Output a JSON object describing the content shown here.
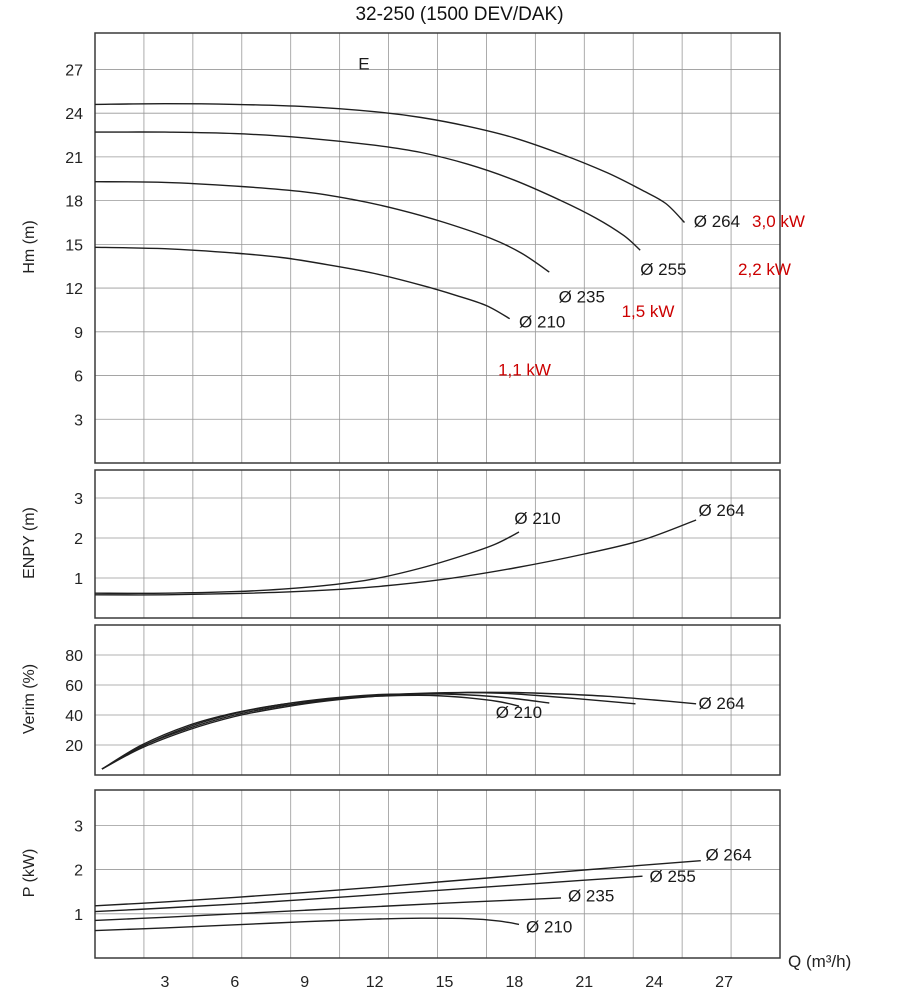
{
  "title": "32-250 (1500 DEV/DAK)",
  "x_axis": {
    "label": "Q (m³/h)",
    "min": 0,
    "max": 29.4,
    "grid_step": 2.1,
    "ticks": [
      3,
      6,
      9,
      12,
      15,
      18,
      21,
      24,
      27
    ]
  },
  "chart_data": [
    {
      "type": "line",
      "name": "head-curves",
      "ylabel": "Hm (m)",
      "y_min": 0,
      "y_max": 29.5,
      "y_ticks": [
        3,
        6,
        9,
        12,
        15,
        18,
        21,
        24,
        27
      ],
      "series": [
        {
          "name": "264",
          "points": [
            [
              0,
              24.6
            ],
            [
              3,
              24.65
            ],
            [
              6,
              24.6
            ],
            [
              9,
              24.45
            ],
            [
              12,
              24.1
            ],
            [
              14,
              23.7
            ],
            [
              16,
              23.1
            ],
            [
              18,
              22.3
            ],
            [
              20,
              21.2
            ],
            [
              22,
              19.9
            ],
            [
              23.5,
              18.7
            ],
            [
              24.5,
              17.8
            ],
            [
              25.3,
              16.5
            ]
          ]
        },
        {
          "name": "255",
          "points": [
            [
              0,
              22.7
            ],
            [
              3,
              22.7
            ],
            [
              6,
              22.6
            ],
            [
              9,
              22.3
            ],
            [
              12,
              21.8
            ],
            [
              14,
              21.3
            ],
            [
              16,
              20.5
            ],
            [
              18,
              19.4
            ],
            [
              20,
              18.0
            ],
            [
              21.5,
              16.8
            ],
            [
              22.7,
              15.6
            ],
            [
              23.4,
              14.6
            ]
          ]
        },
        {
          "name": "235",
          "points": [
            [
              0,
              19.3
            ],
            [
              3,
              19.25
            ],
            [
              6,
              19.0
            ],
            [
              9,
              18.6
            ],
            [
              11,
              18.1
            ],
            [
              13,
              17.4
            ],
            [
              15,
              16.5
            ],
            [
              17,
              15.4
            ],
            [
              18.3,
              14.4
            ],
            [
              19.5,
              13.1
            ]
          ]
        },
        {
          "name": "210",
          "points": [
            [
              0,
              14.8
            ],
            [
              3,
              14.7
            ],
            [
              6,
              14.4
            ],
            [
              8,
              14.1
            ],
            [
              10,
              13.6
            ],
            [
              12,
              13.0
            ],
            [
              14,
              12.2
            ],
            [
              15.5,
              11.5
            ],
            [
              16.8,
              10.8
            ],
            [
              17.8,
              9.9
            ]
          ]
        }
      ],
      "annotations": [
        {
          "text": "E",
          "x": 11.3,
          "y": 27.0
        },
        {
          "text": "Ø 264",
          "x": 25.7,
          "y": 16.2
        },
        {
          "text": "3,0 kW",
          "x": 28.2,
          "y": 16.2,
          "color": "#cc0000"
        },
        {
          "text": "Ø 255",
          "x": 23.4,
          "y": 12.9
        },
        {
          "text": "2,2 kW",
          "x": 27.6,
          "y": 12.9,
          "color": "#cc0000"
        },
        {
          "text": "Ø 235",
          "x": 19.9,
          "y": 11.0
        },
        {
          "text": "1,5 kW",
          "x": 22.6,
          "y": 10.0,
          "color": "#cc0000"
        },
        {
          "text": "Ø 210",
          "x": 18.2,
          "y": 9.3
        },
        {
          "text": "1,1 kW",
          "x": 17.3,
          "y": 6.0,
          "color": "#cc0000"
        }
      ]
    },
    {
      "type": "line",
      "name": "npsh-curves",
      "ylabel": "ENPY (m)",
      "y_min": 0,
      "y_max": 3.7,
      "y_ticks": [
        1,
        2,
        3
      ],
      "series": [
        {
          "name": "210",
          "points": [
            [
              0,
              0.62
            ],
            [
              3,
              0.62
            ],
            [
              6,
              0.66
            ],
            [
              8,
              0.72
            ],
            [
              10,
              0.82
            ],
            [
              12,
              0.98
            ],
            [
              14,
              1.25
            ],
            [
              16,
              1.6
            ],
            [
              17.2,
              1.85
            ],
            [
              18.2,
              2.15
            ]
          ]
        },
        {
          "name": "264",
          "points": [
            [
              0,
              0.58
            ],
            [
              3,
              0.58
            ],
            [
              6,
              0.61
            ],
            [
              9,
              0.67
            ],
            [
              12,
              0.78
            ],
            [
              15,
              0.97
            ],
            [
              18,
              1.25
            ],
            [
              21,
              1.6
            ],
            [
              23.5,
              1.95
            ],
            [
              25.8,
              2.45
            ]
          ]
        }
      ],
      "annotations": [
        {
          "text": "Ø 210",
          "x": 18.0,
          "y": 2.35
        },
        {
          "text": "Ø 264",
          "x": 25.9,
          "y": 2.55
        }
      ]
    },
    {
      "type": "line",
      "name": "efficiency-curves",
      "ylabel": "Verim (%)",
      "y_min": 0,
      "y_max": 100,
      "y_ticks": [
        20,
        40,
        60,
        80
      ],
      "series": [
        {
          "name": "264",
          "points": [
            [
              0.3,
              4
            ],
            [
              2,
              18
            ],
            [
              4,
              30
            ],
            [
              6,
              39
            ],
            [
              8,
              45
            ],
            [
              10,
              49.5
            ],
            [
              12,
              52.5
            ],
            [
              14,
              54
            ],
            [
              16,
              55
            ],
            [
              18,
              55
            ],
            [
              20,
              54
            ],
            [
              22,
              52.5
            ],
            [
              24,
              50
            ],
            [
              25.8,
              47.5
            ]
          ]
        },
        {
          "name": "255",
          "points": [
            [
              0.3,
              4
            ],
            [
              2,
              19
            ],
            [
              4,
              31
            ],
            [
              6,
              40
            ],
            [
              8,
              46
            ],
            [
              10,
              50
            ],
            [
              12,
              53
            ],
            [
              14,
              54.5
            ],
            [
              16,
              55
            ],
            [
              17.5,
              54.5
            ],
            [
              19,
              53
            ],
            [
              21,
              50.5
            ],
            [
              23.2,
              47.5
            ]
          ]
        },
        {
          "name": "235",
          "points": [
            [
              0.3,
              4
            ],
            [
              2,
              19
            ],
            [
              4,
              32
            ],
            [
              6,
              41
            ],
            [
              8,
              47
            ],
            [
              10,
              51
            ],
            [
              12,
              53.5
            ],
            [
              13.5,
              54
            ],
            [
              15,
              54
            ],
            [
              16.5,
              53
            ],
            [
              18,
              51
            ],
            [
              19.5,
              48
            ]
          ]
        },
        {
          "name": "210",
          "points": [
            [
              0.3,
              4
            ],
            [
              2,
              20
            ],
            [
              4,
              33
            ],
            [
              6,
              41.5
            ],
            [
              8,
              47
            ],
            [
              10,
              50.5
            ],
            [
              11.5,
              52
            ],
            [
              13,
              53
            ],
            [
              14.5,
              53
            ],
            [
              16,
              51.5
            ],
            [
              17.3,
              49
            ],
            [
              18.2,
              46
            ]
          ]
        }
      ],
      "annotations": [
        {
          "text": "Ø 210",
          "x": 17.2,
          "y": 38
        },
        {
          "text": "Ø 264",
          "x": 25.9,
          "y": 44
        }
      ]
    },
    {
      "type": "line",
      "name": "power-curves",
      "ylabel": "P (kW)",
      "y_min": 0,
      "y_max": 3.8,
      "y_ticks": [
        1,
        2,
        3
      ],
      "show_x_ticks": true,
      "series": [
        {
          "name": "264",
          "points": [
            [
              0,
              1.18
            ],
            [
              3,
              1.27
            ],
            [
              6,
              1.37
            ],
            [
              9,
              1.48
            ],
            [
              12,
              1.6
            ],
            [
              15,
              1.73
            ],
            [
              18,
              1.86
            ],
            [
              21,
              1.99
            ],
            [
              24,
              2.12
            ],
            [
              26,
              2.2
            ]
          ]
        },
        {
          "name": "255",
          "points": [
            [
              0,
              1.05
            ],
            [
              3,
              1.13
            ],
            [
              6,
              1.22
            ],
            [
              9,
              1.32
            ],
            [
              12,
              1.43
            ],
            [
              15,
              1.54
            ],
            [
              18,
              1.65
            ],
            [
              21,
              1.76
            ],
            [
              23.5,
              1.85
            ]
          ]
        },
        {
          "name": "235",
          "points": [
            [
              0,
              0.85
            ],
            [
              3,
              0.92
            ],
            [
              6,
              1.0
            ],
            [
              9,
              1.08
            ],
            [
              12,
              1.16
            ],
            [
              15,
              1.24
            ],
            [
              18,
              1.31
            ],
            [
              20,
              1.36
            ]
          ]
        },
        {
          "name": "210",
          "points": [
            [
              0,
              0.62
            ],
            [
              3,
              0.68
            ],
            [
              6,
              0.75
            ],
            [
              9,
              0.82
            ],
            [
              12,
              0.88
            ],
            [
              14,
              0.9
            ],
            [
              16,
              0.89
            ],
            [
              17.3,
              0.84
            ],
            [
              18.2,
              0.76
            ]
          ]
        }
      ],
      "annotations": [
        {
          "text": "Ø 264",
          "x": 26.2,
          "y": 2.2
        },
        {
          "text": "Ø 255",
          "x": 23.8,
          "y": 1.72
        },
        {
          "text": "Ø 235",
          "x": 20.3,
          "y": 1.28
        },
        {
          "text": "Ø 210",
          "x": 18.5,
          "y": 0.58
        }
      ]
    }
  ]
}
